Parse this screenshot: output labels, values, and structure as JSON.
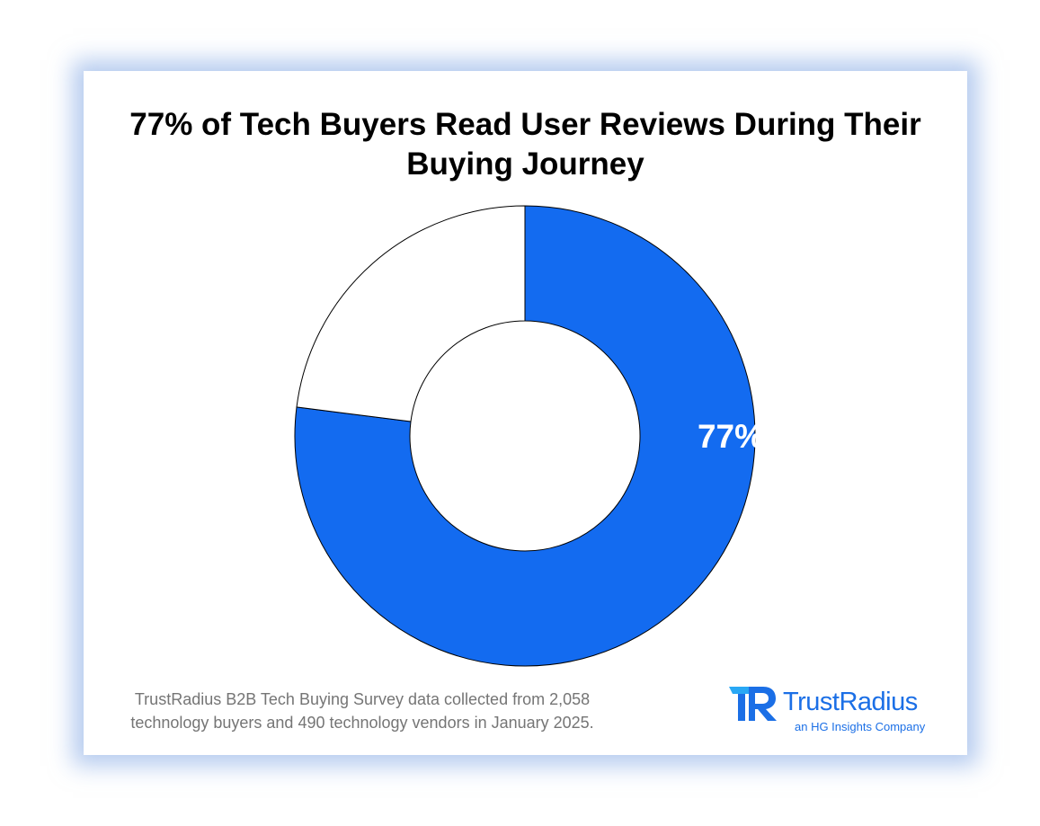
{
  "title": "77% of Tech Buyers Read User Reviews During Their Buying Journey",
  "chart_data": {
    "type": "pie",
    "subtype": "donut",
    "slices": [
      {
        "value": 77,
        "label": "77%",
        "color": "#136bf0"
      },
      {
        "value": 23,
        "label": "",
        "color": "#ffffff"
      }
    ],
    "start_angle_deg": 0,
    "direction": "clockwise",
    "outline_color": "#000000"
  },
  "footnote": "TrustRadius B2B Tech Buying Survey data collected from 2,058 technology buyers and 490 technology vendors in January 2025.",
  "logo": {
    "name": "TrustRadius",
    "tagline": "an HG Insights Company",
    "color": "#1b6fe6",
    "accent_color": "#29a8f5"
  },
  "colors": {
    "primary_blue": "#136bf0",
    "card_glow": "#78a0e1",
    "footnote_gray": "#757575"
  }
}
